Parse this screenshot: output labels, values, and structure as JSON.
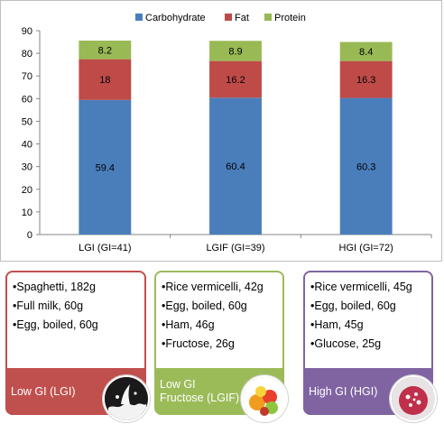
{
  "chart_data": {
    "type": "bar",
    "stacked": true,
    "categories": [
      "LGI (GI=41)",
      "LGIF (GI=39)",
      "HGI (GI=72)"
    ],
    "series": [
      {
        "name": "Carbohydrate",
        "values": [
          59.4,
          60.4,
          60.3
        ],
        "color": "#4a7ebb"
      },
      {
        "name": "Fat",
        "values": [
          18,
          16.2,
          16.3
        ],
        "color": "#be4b48"
      },
      {
        "name": "Protein",
        "values": [
          8.2,
          8.9,
          8.4
        ],
        "color": "#98b954"
      }
    ],
    "ylim": [
      0,
      90
    ],
    "yticks": [
      "0",
      "10",
      "20",
      "30",
      "40",
      "50",
      "60",
      "70",
      "80",
      "90"
    ],
    "data_labels": [
      [
        "59.4",
        "60.4",
        "60.3"
      ],
      [
        "18",
        "16.2",
        "16.3"
      ],
      [
        "8.2",
        "8.9",
        "8.4"
      ]
    ],
    "legend_position": "top",
    "grid": false
  },
  "panels": [
    {
      "id": "lgi",
      "items": [
        "Spaghetti, 182g",
        "Full milk, 60g",
        "Egg, boiled, 60g"
      ],
      "label": "Low GI (LGI)",
      "border_color": "#c0504d",
      "band_color": "#c0504d",
      "photo_icon": "milk-splash-photo"
    },
    {
      "id": "lgif",
      "items": [
        "Rice vermicelli, 42g",
        "Egg, boiled, 60g",
        "Ham, 46g",
        "Fructose, 26g"
      ],
      "label_lines": [
        "Low GI",
        "Fructose (LGIF)"
      ],
      "border_color": "#9bbb59",
      "band_color": "#9bbb59",
      "photo_icon": "fruit-bowl-photo"
    },
    {
      "id": "hgi",
      "items": [
        "Rice vermicelli, 45g",
        "Egg, boiled, 60g",
        "Ham, 45g",
        "Glucose, 25g"
      ],
      "label": "High GI (HGI)",
      "border_color": "#8064a2",
      "band_color": "#8064a2",
      "photo_icon": "glucose-crystals-photo"
    }
  ]
}
